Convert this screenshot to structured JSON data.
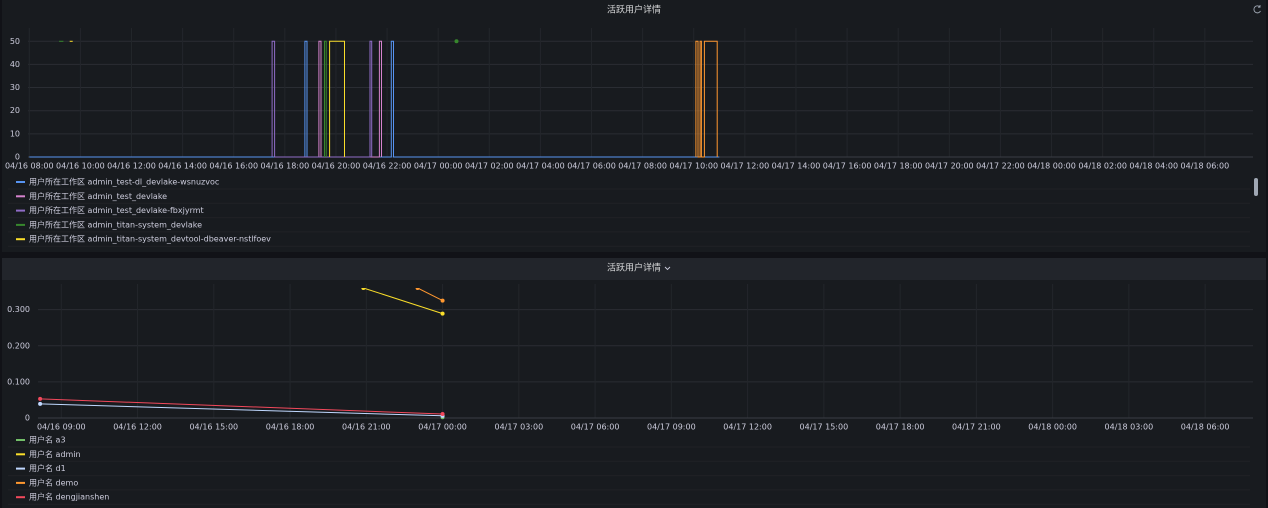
{
  "chart_data": [
    {
      "type": "line",
      "title": "活跃用户详情",
      "xlim": [
        "04/16 07:57",
        "04/18 07:53"
      ],
      "xticks": [
        "04/16 08:00",
        "04/16 10:00",
        "04/16 12:00",
        "04/16 14:00",
        "04/16 16:00",
        "04/16 18:00",
        "04/16 20:00",
        "04/16 22:00",
        "04/17 00:00",
        "04/17 02:00",
        "04/17 04:00",
        "04/17 06:00",
        "04/17 08:00",
        "04/17 10:00",
        "04/17 12:00",
        "04/17 14:00",
        "04/17 16:00",
        "04/17 18:00",
        "04/17 20:00",
        "04/17 22:00",
        "04/18 00:00",
        "04/18 02:00",
        "04/18 04:00",
        "04/18 06:00"
      ],
      "ylim": [
        0,
        54
      ],
      "yticks": [
        0,
        10,
        20,
        30,
        40,
        50
      ],
      "grid": true,
      "show_points": false,
      "series": [
        {
          "name": "用户所在工作区 admin_test-dl_devlake-wsnuzvoc",
          "color": "#5794f2",
          "x": [
            "04/16 08:00",
            "04/16 18:47",
            "04/16 18:47",
            "04/16 18:52",
            "04/16 18:52",
            "04/16 22:10",
            "04/16 22:10",
            "04/16 22:15",
            "04/16 22:15",
            "04/17 11:00"
          ],
          "values": [
            0,
            0,
            50,
            50,
            0,
            0,
            50,
            50,
            0,
            0
          ]
        },
        {
          "name": "用户所在工作区 admin_test_devlake",
          "color": "#d683ce",
          "x": [
            "04/16 19:20",
            "04/16 19:20",
            "04/16 19:25",
            "04/16 19:25",
            "04/16 21:42",
            "04/16 21:42",
            "04/16 21:47",
            "04/16 21:47"
          ],
          "values": [
            0,
            50,
            50,
            0,
            0,
            50,
            50,
            0
          ]
        },
        {
          "name": "用户所在工作区 admin_test_devlake-fbxjyrmt",
          "color": "#8f6cc7",
          "x": [
            "04/16 17:30",
            "04/16 17:30",
            "04/16 17:36",
            "04/16 17:36",
            "04/16 21:20",
            "04/16 21:20",
            "04/16 21:24",
            "04/16 21:24"
          ],
          "values": [
            0,
            50,
            50,
            0,
            0,
            50,
            50,
            0
          ]
        },
        {
          "name": "用户所在工作区 admin_titan-system_devlake",
          "color": "#37872d",
          "x": [
            "04/16 09:10",
            "04/16 09:20",
            "04/16 12:00",
            "04/16 19:33",
            "04/16 19:33",
            "04/16 19:37",
            "04/16 19:37",
            "04/16 23:00",
            "04/17 00:43"
          ],
          "values": [
            50,
            50,
            null,
            0,
            50,
            50,
            0,
            null,
            50
          ]
        },
        {
          "name": "用户所在工作区 admin_titan-system_devtool-dbeaver-nstlfoev",
          "color": "#fade2a",
          "x": [
            "04/16 09:35",
            "04/16 09:42",
            "04/16 12:00",
            "04/16 19:45",
            "04/16 19:45",
            "04/16 20:20",
            "04/16 20:20"
          ],
          "values": [
            50,
            50,
            null,
            0,
            50,
            50,
            0
          ]
        },
        {
          "color": "#ff9830",
          "x": [
            "04/17 10:05",
            "04/17 10:05",
            "04/17 10:10",
            "04/17 10:10",
            "04/17 10:15",
            "04/17 10:15",
            "04/17 10:18",
            "04/17 10:18",
            "04/17 10:25",
            "04/17 10:25",
            "04/17 10:55",
            "04/17 10:55"
          ],
          "values": [
            0,
            50,
            50,
            0,
            0,
            50,
            50,
            0,
            0,
            50,
            50,
            0
          ]
        }
      ]
    },
    {
      "type": "line",
      "title": "活跃用户详情",
      "xlim": [
        "04/16 08:05",
        "04/18 07:53"
      ],
      "xticks": [
        "04/16 09:00",
        "04/16 12:00",
        "04/16 15:00",
        "04/16 18:00",
        "04/16 21:00",
        "04/17 00:00",
        "04/17 03:00",
        "04/17 06:00",
        "04/17 09:00",
        "04/17 12:00",
        "04/17 15:00",
        "04/17 18:00",
        "04/17 21:00",
        "04/18 00:00",
        "04/18 03:00",
        "04/18 06:00"
      ],
      "ylim": [
        0,
        0.36
      ],
      "yticks": [
        0,
        {
          "value": 0.1,
          "label": "0.100"
        },
        {
          "value": 0.2,
          "label": "0.200"
        },
        {
          "value": 0.3,
          "label": "0.300"
        }
      ],
      "grid": true,
      "show_points": true,
      "series": [
        {
          "name": "用户名 a3",
          "color": "#73bf69",
          "x": [
            "04/17 00:00"
          ],
          "values": [
            0.002
          ]
        },
        {
          "name": "用户名 admin",
          "color": "#fade2a",
          "x": [
            "04/16 20:53",
            "04/17 00:00"
          ],
          "values": [
            0.36,
            0.289
          ]
        },
        {
          "name": "用户名 d1",
          "color": "#c0d8ff",
          "x": [
            "04/16 08:10",
            "04/17 00:00"
          ],
          "values": [
            0.039,
            0.006
          ]
        },
        {
          "name": "用户名 demo",
          "color": "#ff9830",
          "x": [
            "04/16 23:01",
            "04/17 00:00"
          ],
          "values": [
            0.36,
            0.325
          ]
        },
        {
          "name": "用户名 dengjianshen",
          "color": "#f2495c",
          "x": [
            "04/16 08:10",
            "04/17 00:00"
          ],
          "values": [
            0.053,
            0.011
          ]
        }
      ]
    }
  ]
}
